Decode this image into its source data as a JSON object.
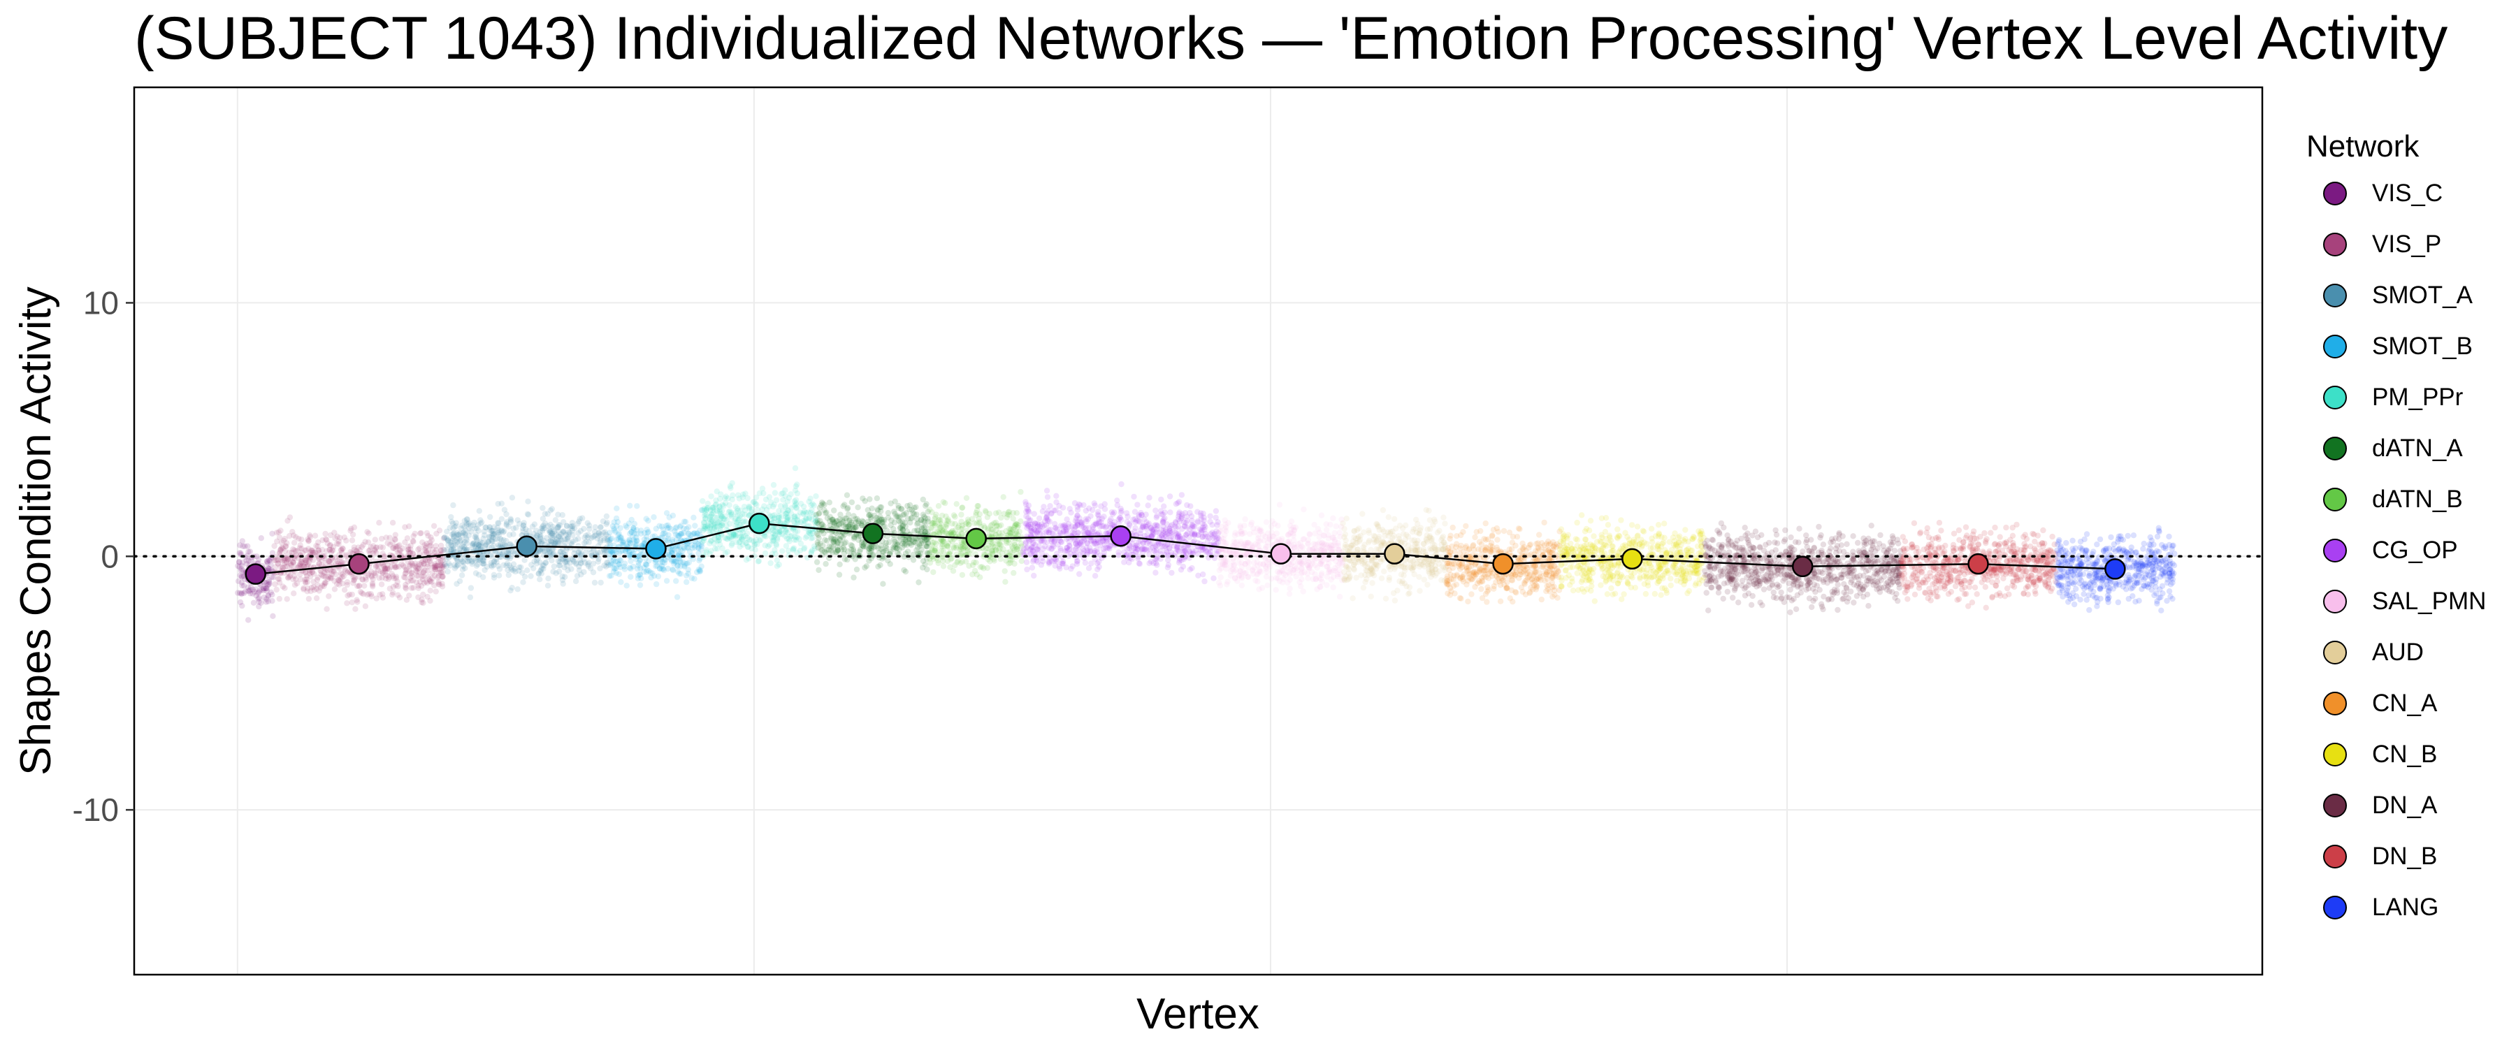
{
  "chart_data": {
    "type": "scatter",
    "title": "(SUBJECT 1043) Individualized Networks — 'Emotion Processing' Vertex Level Activity",
    "xlabel": "Vertex",
    "ylabel": "Shapes Condition Activity",
    "ylim": [
      -16.5,
      18.5
    ],
    "yticks": [
      -10,
      0,
      10
    ],
    "ytick_labels": [
      "-10",
      "0",
      "10"
    ],
    "xlim": [
      -1000,
      19600
    ],
    "x_grid_breaks": [
      0,
      5000,
      10000,
      15000
    ],
    "reference_line_y": 0,
    "grid": true,
    "legend_title": "Network",
    "legend_position": "right",
    "networks": [
      {
        "name": "VIS_C",
        "color": "#7B1A82",
        "x_start": 0,
        "x_end": 350,
        "mean_x": 175,
        "mean": -0.7
      },
      {
        "name": "VIS_P",
        "color": "#A7427C",
        "x_start": 350,
        "x_end": 2000,
        "mean_x": 1175,
        "mean": -0.3
      },
      {
        "name": "SMOT_A",
        "color": "#4A8FAE",
        "x_start": 2000,
        "x_end": 3600,
        "mean_x": 2800,
        "mean": 0.4
      },
      {
        "name": "SMOT_B",
        "color": "#20AEE8",
        "x_start": 3600,
        "x_end": 4500,
        "mean_x": 4050,
        "mean": 0.3
      },
      {
        "name": "PM_PPr",
        "color": "#3DE0C8",
        "x_start": 4500,
        "x_end": 5600,
        "mean_x": 5050,
        "mean": 1.3
      },
      {
        "name": "dATN_A",
        "color": "#127321",
        "x_start": 5600,
        "x_end": 6700,
        "mean_x": 6150,
        "mean": 0.9
      },
      {
        "name": "dATN_B",
        "color": "#63C846",
        "x_start": 6700,
        "x_end": 7600,
        "mean_x": 7150,
        "mean": 0.7
      },
      {
        "name": "CG_OP",
        "color": "#A940F2",
        "x_start": 7600,
        "x_end": 9500,
        "mean_x": 8550,
        "mean": 0.8
      },
      {
        "name": "SAL_PMN",
        "color": "#F8BFEC",
        "x_start": 9500,
        "x_end": 10700,
        "mean_x": 10100,
        "mean": 0.1
      },
      {
        "name": "AUD",
        "color": "#E3CE9A",
        "x_start": 10700,
        "x_end": 11700,
        "mean_x": 11200,
        "mean": 0.1
      },
      {
        "name": "CN_A",
        "color": "#F0902A",
        "x_start": 11700,
        "x_end": 12800,
        "mean_x": 12250,
        "mean": -0.3
      },
      {
        "name": "CN_B",
        "color": "#E7E012",
        "x_start": 12800,
        "x_end": 14200,
        "mean_x": 13500,
        "mean": -0.1
      },
      {
        "name": "DN_A",
        "color": "#6A2C45",
        "x_start": 14200,
        "x_end": 16100,
        "mean_x": 15150,
        "mean": -0.4
      },
      {
        "name": "DN_B",
        "color": "#CC3F48",
        "x_start": 16100,
        "x_end": 17600,
        "mean_x": 16850,
        "mean": -0.3
      },
      {
        "name": "LANG",
        "color": "#1E3CF6",
        "x_start": 17600,
        "x_end": 18750,
        "mean_x": 18175,
        "mean": -0.5
      }
    ]
  }
}
